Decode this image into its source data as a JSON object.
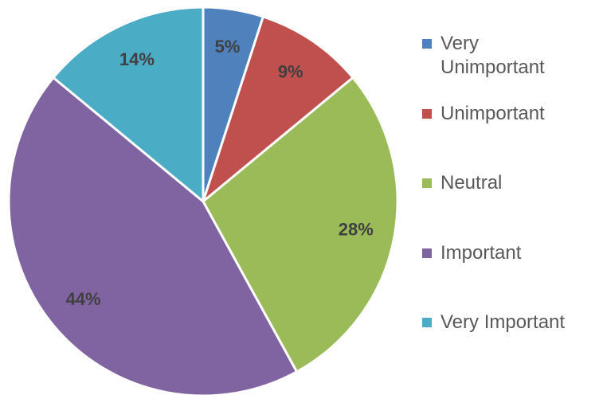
{
  "chart_data": {
    "type": "pie",
    "categories": [
      "Very Unimportant",
      "Unimportant",
      "Neutral",
      "Important",
      "Very Important"
    ],
    "values": [
      5,
      9,
      28,
      44,
      14
    ],
    "value_labels": [
      "5%",
      "9%",
      "28%",
      "44%",
      "14%"
    ],
    "colors": [
      "#4f81bd",
      "#c0504d",
      "#9bbb59",
      "#8064a2",
      "#4bacc6"
    ],
    "legend": "right"
  }
}
